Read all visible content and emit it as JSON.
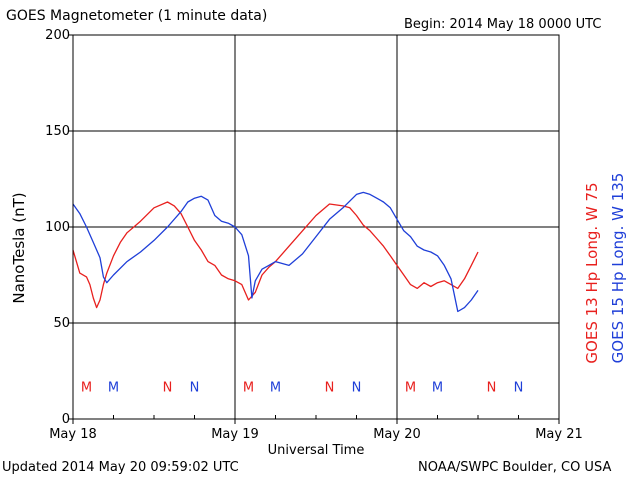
{
  "header": {
    "title": "GOES Magnetometer (1 minute data)",
    "begin": "Begin:  2014 May 18 0000 UTC"
  },
  "footer": {
    "updated": "Updated 2014 May 20 09:59:02 UTC",
    "source": "NOAA/SWPC Boulder, CO USA"
  },
  "colors": {
    "goes13": "#e8201e",
    "goes15": "#1f3fd8",
    "axes": "#000000",
    "background": "#ffffff"
  },
  "chart_data": {
    "type": "line",
    "xlabel": "Universal Time",
    "ylabel": "NanoTesla (nT)",
    "xlim": [
      0,
      72
    ],
    "x_unit": "hours since 2014 May 18 0000 UTC",
    "ylim": [
      0,
      200
    ],
    "x_ticks": [
      {
        "x": 0,
        "label": "May 18"
      },
      {
        "x": 24,
        "label": "May 19"
      },
      {
        "x": 48,
        "label": "May 20"
      },
      {
        "x": 72,
        "label": "May 21"
      }
    ],
    "y_ticks": [
      0,
      50,
      100,
      150,
      200
    ],
    "grid": true,
    "legend_placement": "right (rotated)",
    "series": [
      {
        "name": "GOES 13 Hp  Long. W 75",
        "color": "#e8201e",
        "x": [
          0,
          1,
          2,
          2.5,
          3,
          3.5,
          4,
          4.5,
          5,
          6,
          7,
          8,
          10,
          12,
          14,
          15,
          16,
          17,
          18,
          19,
          20,
          21,
          22,
          23,
          24,
          25,
          26,
          27,
          28,
          29,
          30,
          32,
          34,
          36,
          38,
          40,
          41,
          42,
          43,
          44,
          45,
          46,
          47,
          48,
          49,
          50,
          51,
          52,
          53,
          54,
          55,
          56,
          57,
          58,
          59,
          60
        ],
        "y": [
          88,
          76,
          74,
          70,
          63,
          58,
          62,
          70,
          76,
          85,
          92,
          97,
          103,
          110,
          113,
          111,
          107,
          100,
          93,
          88,
          82,
          80,
          75,
          73,
          72,
          70,
          62,
          66,
          75,
          79,
          82,
          90,
          98,
          106,
          112,
          111,
          110,
          106,
          101,
          98,
          94,
          90,
          85,
          80,
          75,
          70,
          68,
          71,
          69,
          71,
          72,
          70,
          68,
          73,
          80,
          87
        ]
      },
      {
        "name": "GOES 15 Hp  Long. W 135",
        "color": "#1f3fd8",
        "x": [
          0,
          1,
          2,
          3,
          4,
          4.5,
          5,
          6,
          8,
          10,
          12,
          14,
          16,
          17,
          18,
          19,
          20,
          21,
          22,
          23,
          24,
          25,
          26,
          26.5,
          27,
          28,
          29,
          30,
          32,
          34,
          36,
          38,
          40,
          42,
          43,
          44,
          45,
          46,
          47,
          48,
          49,
          50,
          51,
          52,
          53,
          54,
          55,
          56,
          57,
          58,
          59,
          60
        ],
        "y": [
          112,
          107,
          100,
          92,
          84,
          74,
          71,
          75,
          82,
          87,
          93,
          100,
          108,
          113,
          115,
          116,
          114,
          106,
          103,
          102,
          100,
          96,
          85,
          63,
          72,
          78,
          80,
          82,
          80,
          86,
          95,
          104,
          110,
          117,
          118,
          117,
          115,
          113,
          110,
          104,
          98,
          95,
          90,
          88,
          87,
          85,
          80,
          73,
          56,
          58,
          62,
          67
        ]
      }
    ],
    "annotations": [
      {
        "label": "M",
        "x": 2,
        "color": "#e8201e"
      },
      {
        "label": "M",
        "x": 6,
        "color": "#1f3fd8"
      },
      {
        "label": "N",
        "x": 14,
        "color": "#e8201e"
      },
      {
        "label": "N",
        "x": 18,
        "color": "#1f3fd8"
      },
      {
        "label": "M",
        "x": 26,
        "color": "#e8201e"
      },
      {
        "label": "M",
        "x": 30,
        "color": "#1f3fd8"
      },
      {
        "label": "N",
        "x": 38,
        "color": "#e8201e"
      },
      {
        "label": "N",
        "x": 42,
        "color": "#1f3fd8"
      },
      {
        "label": "M",
        "x": 50,
        "color": "#e8201e"
      },
      {
        "label": "M",
        "x": 54,
        "color": "#1f3fd8"
      },
      {
        "label": "N",
        "x": 62,
        "color": "#e8201e"
      },
      {
        "label": "N",
        "x": 66,
        "color": "#1f3fd8"
      }
    ],
    "annotation_y": 17
  }
}
